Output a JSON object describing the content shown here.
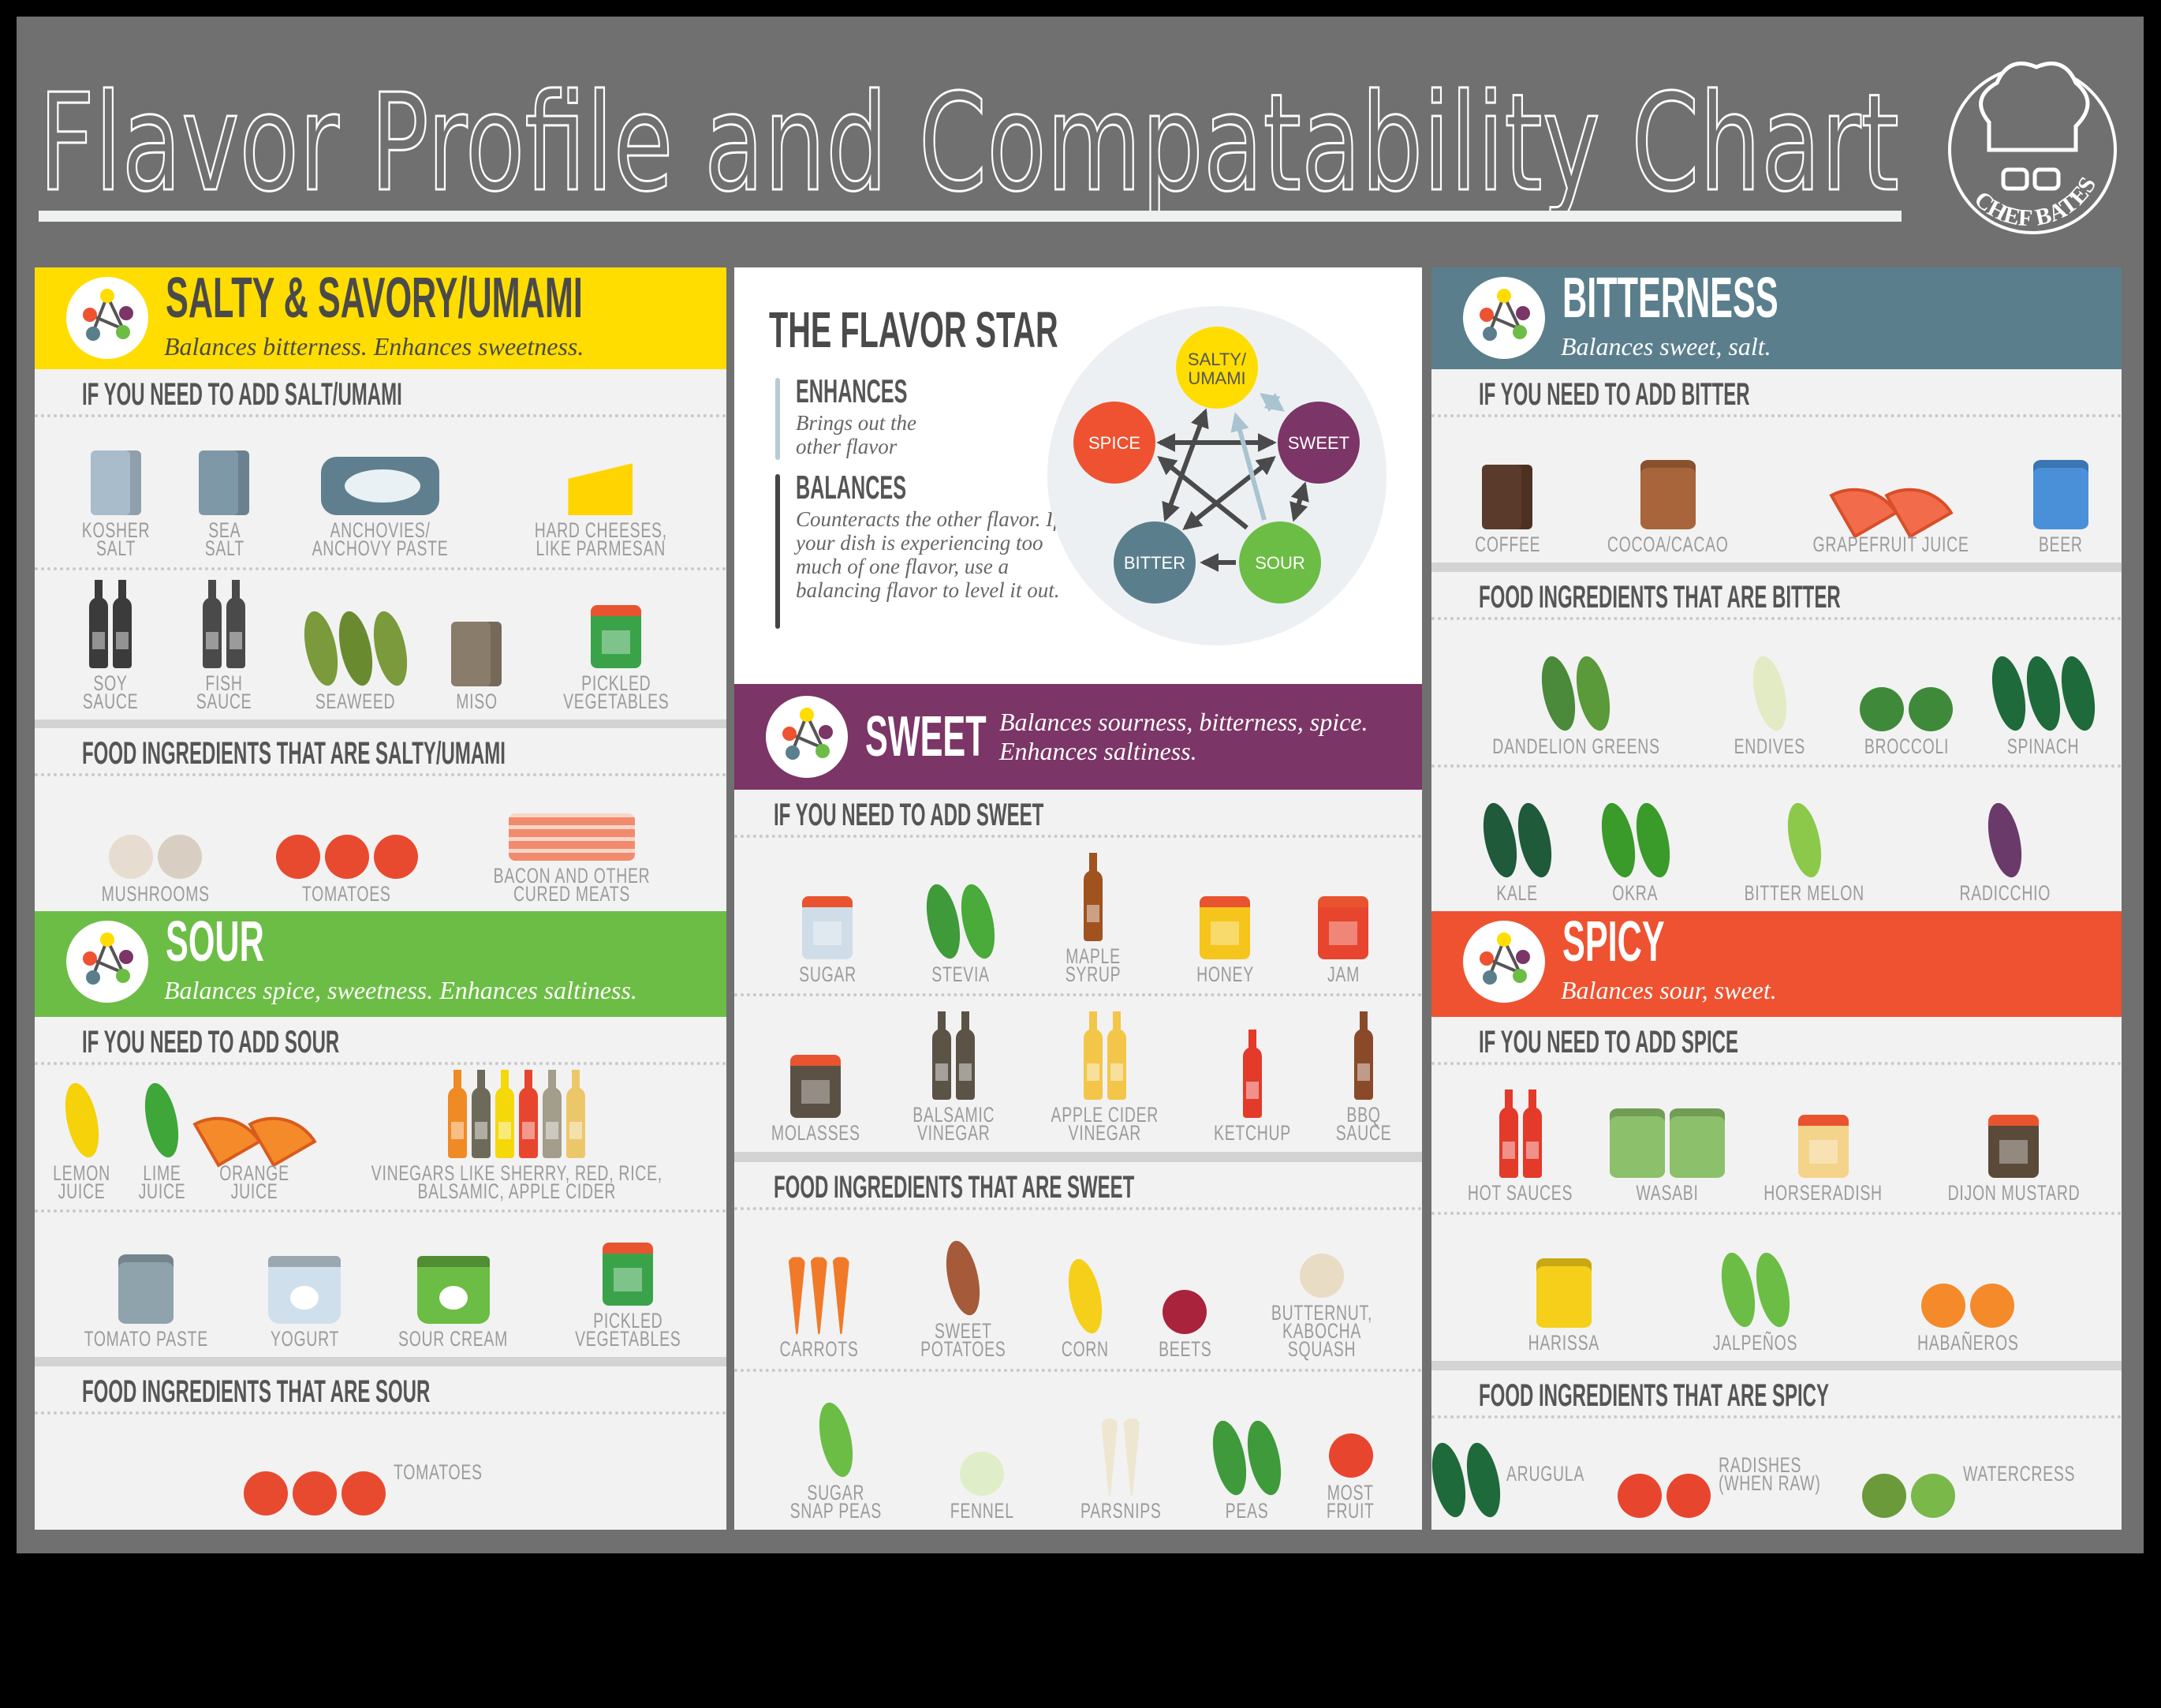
{
  "title": "Flavor Profile and Compatability Chart",
  "logo": {
    "text": "CHEF BATES"
  },
  "colors": {
    "board": "#6f706f",
    "salty": "#FFDD00",
    "sour": "#6CBD45",
    "sweet": "#7B3566",
    "bitter": "#5A7E8C",
    "spicy": "#EE5230"
  },
  "salty": {
    "title": "SALTY & SAVORY/UMAMI",
    "subtitle": "Balances bitterness. Enhances sweetness.",
    "add": {
      "heading": "IF YOU NEED TO ADD SALT/UMAMI",
      "rows": [
        [
          {
            "label": "KOSHER\nSALT",
            "icon": "kosher-salt-icon",
            "shape": "box",
            "colors": [
              "#a8bccb"
            ]
          },
          {
            "label": "SEA\nSALT",
            "icon": "sea-salt-icon",
            "shape": "box",
            "colors": [
              "#7f98a8"
            ]
          },
          {
            "label": "ANCHOVIES/\nANCHOVY PASTE",
            "icon": "anchovies-icon",
            "shape": "fish",
            "colors": [
              "#5f7f8e"
            ]
          },
          {
            "label": "HARD CHEESES,\nLIKE PARMESAN",
            "icon": "cheese-icon",
            "shape": "cheese",
            "colors": [
              "#FFD400"
            ]
          }
        ],
        [
          {
            "label": "SOY\nSAUCE",
            "icon": "soy-sauce-icon",
            "shape": "bottle",
            "colors": [
              "#3b3b3b",
              "#3b3b3b"
            ]
          },
          {
            "label": "FISH\nSAUCE",
            "icon": "fish-sauce-icon",
            "shape": "bottle",
            "colors": [
              "#4a4a4a",
              "#4a4a4a"
            ]
          },
          {
            "label": "SEAWEED",
            "icon": "seaweed-icon",
            "shape": "leaf",
            "colors": [
              "#7a9a3c",
              "#6a8a30",
              "#7a9a3c"
            ]
          },
          {
            "label": "MISO",
            "icon": "miso-icon",
            "shape": "box",
            "colors": [
              "#8a7c6a"
            ]
          },
          {
            "label": "PICKLED\nVEGETABLES",
            "icon": "pickled-vegetables-icon",
            "shape": "jar",
            "colors": [
              "#3aa34a"
            ]
          }
        ]
      ]
    },
    "food": {
      "heading": "FOOD INGREDIENTS THAT ARE SALTY/UMAMI",
      "rows": [
        [
          {
            "label": "MUSHROOMS",
            "icon": "mushrooms-icon",
            "shape": "round",
            "colors": [
              "#e6ddd0",
              "#d8cfc2"
            ]
          },
          {
            "label": "TOMATOES",
            "icon": "tomatoes-icon",
            "shape": "round",
            "colors": [
              "#e84a2f",
              "#e84a2f",
              "#e84a2f"
            ]
          },
          {
            "label": "BACON AND OTHER\nCURED MEATS",
            "icon": "bacon-icon",
            "shape": "bacon",
            "colors": [
              "#f28a6e"
            ]
          }
        ]
      ]
    }
  },
  "sour": {
    "title": "SOUR",
    "subtitle": "Balances spice, sweetness. Enhances saltiness.",
    "add": {
      "heading": "IF YOU NEED TO ADD SOUR",
      "rows": [
        [
          {
            "label": "LEMON\nJUICE",
            "icon": "lemon-icon",
            "shape": "leaf",
            "colors": [
              "#f5d20a"
            ]
          },
          {
            "label": "LIME\nJUICE",
            "icon": "lime-icon",
            "shape": "leaf",
            "colors": [
              "#3fa63a"
            ]
          },
          {
            "label": "ORANGE\nJUICE",
            "icon": "orange-slice-icon",
            "shape": "slice",
            "colors": [
              "#f48a2a",
              "#f48a2a"
            ]
          },
          {
            "label": "VINEGARS LIKE SHERRY, RED, RICE,\nBALSAMIC, APPLE CIDER",
            "icon": "vinegar-bottles-icon",
            "shape": "bottle",
            "colors": [
              "#f08a24",
              "#6e6a5a",
              "#f5d80a",
              "#e8452f",
              "#a39d8c",
              "#ecc76a"
            ]
          }
        ],
        [
          {
            "label": "TOMATO PASTE",
            "icon": "tomato-paste-can-icon",
            "shape": "can",
            "colors": [
              "#8fa3ad"
            ]
          },
          {
            "label": "YOGURT",
            "icon": "yogurt-icon",
            "shape": "tub",
            "colors": [
              "#cfe0ec"
            ]
          },
          {
            "label": "SOUR CREAM",
            "icon": "sour-cream-icon",
            "shape": "tub",
            "colors": [
              "#6cbd45"
            ]
          },
          {
            "label": "PICKLED\nVEGETABLES",
            "icon": "pickled-vegetables-icon",
            "shape": "jar",
            "colors": [
              "#3aa34a"
            ]
          }
        ]
      ]
    },
    "food": {
      "heading": "FOOD INGREDIENTS THAT ARE SOUR",
      "inline": true,
      "rows": [
        [
          {
            "label": "TOMATOES",
            "icon": "tomatoes-icon",
            "shape": "round",
            "colors": [
              "#e84a2f",
              "#e84a2f",
              "#e84a2f"
            ]
          }
        ]
      ]
    }
  },
  "star": {
    "title": "THE FLAVOR STAR",
    "enhances": {
      "heading": "ENHANCES",
      "text": "Brings out the other flavor"
    },
    "balances": {
      "heading": "BALANCES",
      "text": "Counteracts the other flavor. If your dish is experiencing too much of one flavor, use a balancing flavor to level it out."
    },
    "nodes": {
      "salty": "SALTY/",
      "umami": "UMAMI",
      "sweet": "SWEET",
      "sour": "SOUR",
      "bitter": "BITTER",
      "spice": "SPICE"
    }
  },
  "sweet": {
    "title": "SWEET",
    "subtitle": "Balances sourness, bitterness, spice. Enhances saltiness.",
    "add": {
      "heading": "IF YOU NEED TO ADD SWEET",
      "rows": [
        [
          {
            "label": "SUGAR",
            "icon": "sugar-jar-icon",
            "shape": "jar",
            "colors": [
              "#cfdde8"
            ]
          },
          {
            "label": "STEVIA",
            "icon": "stevia-icon",
            "shape": "leaf",
            "colors": [
              "#3f9a3a",
              "#4aaa3a"
            ]
          },
          {
            "label": "MAPLE\nSYRUP",
            "icon": "maple-syrup-icon",
            "shape": "bottle",
            "colors": [
              "#a0521f"
            ]
          },
          {
            "label": "HONEY",
            "icon": "honey-jar-icon",
            "shape": "jar",
            "colors": [
              "#f5c51c"
            ]
          },
          {
            "label": "JAM",
            "icon": "jam-jar-icon",
            "shape": "jar",
            "colors": [
              "#e8452f"
            ]
          }
        ],
        [
          {
            "label": "MOLASSES",
            "icon": "molasses-jar-icon",
            "shape": "jar",
            "colors": [
              "#5a5044"
            ]
          },
          {
            "label": "BALSAMIC\nVINEGAR",
            "icon": "balsamic-vinegar-icon",
            "shape": "bottle",
            "colors": [
              "#5b5346",
              "#5b5346"
            ]
          },
          {
            "label": "APPLE CIDER\nVINEGAR",
            "icon": "apple-cider-vinegar-icon",
            "shape": "bottle",
            "colors": [
              "#f3c64a",
              "#f3c64a"
            ]
          },
          {
            "label": "KETCHUP",
            "icon": "ketchup-icon",
            "shape": "bottle",
            "colors": [
              "#e33a2a"
            ]
          },
          {
            "label": "BBQ\nSAUCE",
            "icon": "bbq-sauce-icon",
            "shape": "bottle",
            "colors": [
              "#8a4a2a"
            ]
          }
        ]
      ]
    },
    "food": {
      "heading": "FOOD INGREDIENTS THAT ARE SWEET",
      "rows": [
        [
          {
            "label": "CARROTS",
            "icon": "carrots-icon",
            "shape": "root",
            "colors": [
              "#f07a2a",
              "#f07a2a",
              "#f07a2a"
            ]
          },
          {
            "label": "SWEET\nPOTATOES",
            "icon": "sweet-potatoes-icon",
            "shape": "leaf",
            "colors": [
              "#a55a3a"
            ]
          },
          {
            "label": "CORN",
            "icon": "corn-icon",
            "shape": "leaf",
            "colors": [
              "#f5cf1a"
            ]
          },
          {
            "label": "BEETS",
            "icon": "beets-icon",
            "shape": "round",
            "colors": [
              "#a8233b"
            ]
          },
          {
            "label": "BUTTERNUT,\nKABOCHA\nSQUASH",
            "icon": "squash-icon",
            "shape": "round",
            "colors": [
              "#e8dcc4"
            ]
          }
        ],
        [
          {
            "label": "SUGAR\nSNAP PEAS",
            "icon": "snap-peas-icon",
            "shape": "leaf",
            "colors": [
              "#6cbd45"
            ]
          },
          {
            "label": "FENNEL",
            "icon": "fennel-icon",
            "shape": "round",
            "colors": [
              "#dfeec8"
            ]
          },
          {
            "label": "PARSNIPS",
            "icon": "parsnips-icon",
            "shape": "root",
            "colors": [
              "#efe6d2",
              "#efe6d2"
            ]
          },
          {
            "label": "PEAS",
            "icon": "peas-icon",
            "shape": "leaf",
            "colors": [
              "#3e9a3a",
              "#3e9a3a"
            ]
          },
          {
            "label": "MOST\nFRUIT",
            "icon": "apple-icon",
            "shape": "round",
            "colors": [
              "#e8452f"
            ]
          }
        ]
      ]
    }
  },
  "bitter": {
    "title": "BITTERNESS",
    "subtitle": "Balances sweet, salt.",
    "add": {
      "heading": "IF YOU NEED TO ADD BITTER",
      "rows": [
        [
          {
            "label": "COFFEE",
            "icon": "coffee-bag-icon",
            "shape": "box",
            "colors": [
              "#5a3a2a"
            ]
          },
          {
            "label": "COCOA/CACAO",
            "icon": "cocoa-can-icon",
            "shape": "can",
            "colors": [
              "#a8643a"
            ]
          },
          {
            "label": "GRAPEFRUIT JUICE",
            "icon": "grapefruit-icon",
            "shape": "slice",
            "colors": [
              "#f26b4a",
              "#f26b4a"
            ]
          },
          {
            "label": "BEER",
            "icon": "beer-can-icon",
            "shape": "can",
            "colors": [
              "#4a90d9"
            ]
          }
        ]
      ]
    },
    "food": {
      "heading": "FOOD INGREDIENTS THAT ARE BITTER",
      "rows": [
        [
          {
            "label": "DANDELION GREENS",
            "icon": "dandelion-greens-icon",
            "shape": "leaf",
            "colors": [
              "#4a8a3a",
              "#5a9a3a"
            ]
          },
          {
            "label": "ENDIVES",
            "icon": "endive-icon",
            "shape": "leaf",
            "colors": [
              "#e3ebc4"
            ]
          },
          {
            "label": "BROCCOLI",
            "icon": "broccoli-icon",
            "shape": "round",
            "colors": [
              "#3f8a3a",
              "#3f8a3a"
            ]
          },
          {
            "label": "SPINACH",
            "icon": "spinach-icon",
            "shape": "leaf",
            "colors": [
              "#1f6a3a",
              "#1f6a3a",
              "#1f6a3a"
            ]
          }
        ],
        [
          {
            "label": "KALE",
            "icon": "kale-icon",
            "shape": "leaf",
            "colors": [
              "#1f5a3a",
              "#1f5a3a"
            ]
          },
          {
            "label": "OKRA",
            "icon": "okra-icon",
            "shape": "leaf",
            "colors": [
              "#3a9a2a",
              "#3a9a2a"
            ]
          },
          {
            "label": "BITTER MELON",
            "icon": "bitter-melon-icon",
            "shape": "leaf",
            "colors": [
              "#8cc94a"
            ]
          },
          {
            "label": "RADICCHIO",
            "icon": "radicchio-icon",
            "shape": "leaf",
            "colors": [
              "#6a3a6a"
            ]
          }
        ]
      ]
    }
  },
  "spicy": {
    "title": "SPICY",
    "subtitle": "Balances sour, sweet.",
    "add": {
      "heading": "IF YOU NEED TO ADD SPICE",
      "rows": [
        [
          {
            "label": "HOT SAUCES",
            "icon": "hot-sauce-icon",
            "shape": "bottle",
            "colors": [
              "#e33a2a",
              "#e33a2a"
            ]
          },
          {
            "label": "WASABI",
            "icon": "wasabi-icon",
            "shape": "can",
            "colors": [
              "#8cc06a",
              "#8cc06a"
            ]
          },
          {
            "label": "HORSERADISH",
            "icon": "horseradish-icon",
            "shape": "jar",
            "colors": [
              "#f4d38a"
            ]
          },
          {
            "label": "DIJON MUSTARD",
            "icon": "dijon-mustard-icon",
            "shape": "jar",
            "colors": [
              "#5a4a3a"
            ]
          }
        ],
        [
          {
            "label": "HARISSA",
            "icon": "harissa-can-icon",
            "shape": "can",
            "colors": [
              "#f5cf1a"
            ]
          },
          {
            "label": "JALPEÑOS",
            "icon": "jalapenos-icon",
            "shape": "leaf",
            "colors": [
              "#6cbd45",
              "#6cbd45"
            ]
          },
          {
            "label": "HABAÑEROS",
            "icon": "habaneros-icon",
            "shape": "round",
            "colors": [
              "#f48a2a",
              "#f48a2a"
            ]
          }
        ]
      ]
    },
    "food": {
      "heading": "FOOD INGREDIENTS THAT ARE SPICY",
      "inline": true,
      "rows": [
        [
          {
            "label": "ARUGULA",
            "icon": "arugula-icon",
            "shape": "leaf",
            "colors": [
              "#1f6a3a",
              "#1f6a3a"
            ]
          },
          {
            "label": "RADISHES\n(WHEN RAW)",
            "icon": "radishes-icon",
            "shape": "round",
            "colors": [
              "#e8452f",
              "#e8452f"
            ]
          },
          {
            "label": "WATERCRESS",
            "icon": "watercress-icon",
            "shape": "round",
            "colors": [
              "#6a9a3a",
              "#7ab84a"
            ]
          }
        ]
      ]
    }
  }
}
